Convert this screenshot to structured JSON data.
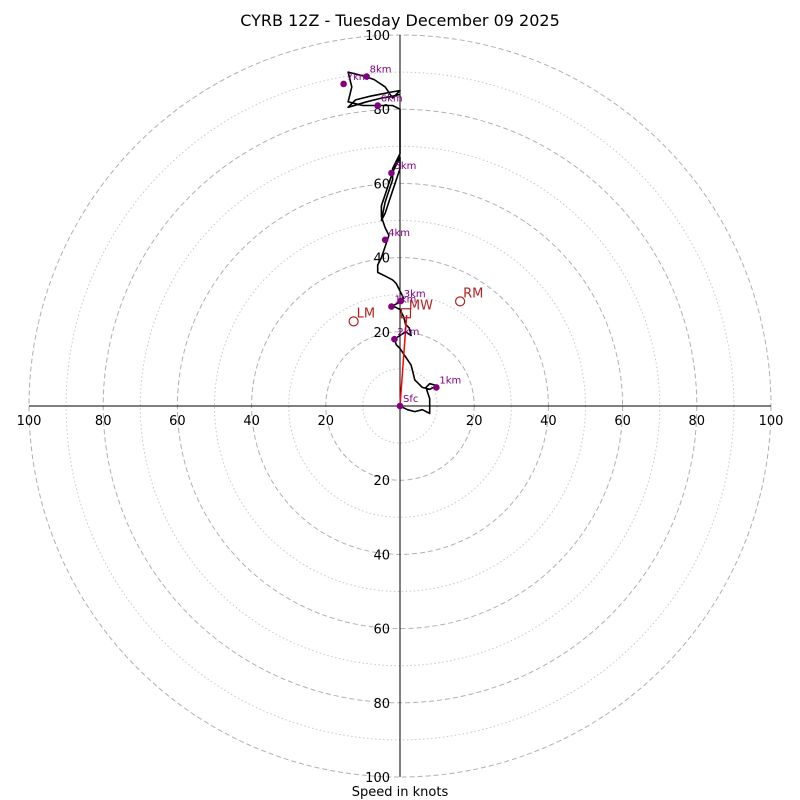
{
  "chart_data": {
    "type": "hodograph",
    "title": "CYRB 12Z - Tuesday December 09 2025",
    "xlabel": "Speed in knots",
    "max_speed": 100,
    "major_rings": [
      20,
      40,
      60,
      80,
      100
    ],
    "minor_rings": [
      10,
      30,
      50,
      70,
      90
    ],
    "tick_labels": [
      "20",
      "40",
      "60",
      "80",
      "100"
    ],
    "profile": [
      [
        0,
        0
      ],
      [
        2,
        -1
      ],
      [
        4,
        -1.5
      ],
      [
        6,
        -1
      ],
      [
        8,
        -2
      ],
      [
        8,
        0
      ],
      [
        8,
        2
      ],
      [
        7.5,
        3.5
      ],
      [
        7,
        5
      ],
      [
        8,
        6
      ],
      [
        10,
        5.5
      ],
      [
        8,
        4.5
      ],
      [
        6,
        5
      ],
      [
        5,
        6
      ],
      [
        4,
        7
      ],
      [
        3.5,
        9
      ],
      [
        3,
        11
      ],
      [
        2,
        12.5
      ],
      [
        1,
        14
      ],
      [
        0,
        15.5
      ],
      [
        -1,
        16.5
      ],
      [
        -1.5,
        18
      ],
      [
        0,
        19
      ],
      [
        1.5,
        20
      ],
      [
        3,
        19
      ],
      [
        2.5,
        21
      ],
      [
        1.5,
        22
      ],
      [
        1,
        24
      ],
      [
        0,
        26
      ],
      [
        -2,
        27
      ],
      [
        0,
        28
      ],
      [
        1,
        29
      ],
      [
        0,
        31
      ],
      [
        -1,
        33
      ],
      [
        -2,
        34
      ],
      [
        -4,
        35
      ],
      [
        -6,
        36
      ],
      [
        -6,
        38
      ],
      [
        -5,
        40
      ],
      [
        -4,
        43
      ],
      [
        -3,
        46
      ],
      [
        -4,
        48
      ],
      [
        -5,
        51
      ],
      [
        -5,
        54
      ],
      [
        -4,
        57
      ],
      [
        -3,
        60
      ],
      [
        -2,
        63
      ],
      [
        -1,
        65
      ],
      [
        0,
        67
      ],
      [
        0,
        64
      ],
      [
        -1,
        61
      ],
      [
        -2,
        58
      ],
      [
        -3,
        55
      ],
      [
        -4,
        52
      ],
      [
        -5,
        50
      ],
      [
        -4,
        55
      ],
      [
        -3,
        58
      ],
      [
        -2,
        61
      ],
      [
        -2,
        64
      ],
      [
        -1,
        66
      ],
      [
        0,
        68
      ],
      [
        0,
        71
      ],
      [
        0,
        74
      ],
      [
        0,
        77
      ],
      [
        0,
        80
      ],
      [
        -2,
        81
      ],
      [
        -6,
        81
      ],
      [
        -10,
        81
      ],
      [
        -14,
        82
      ],
      [
        -13,
        86
      ],
      [
        -14,
        90
      ],
      [
        -10,
        89
      ],
      [
        -7,
        88
      ],
      [
        -4,
        86
      ],
      [
        -2,
        83
      ],
      [
        0,
        85
      ],
      [
        -3,
        84.5
      ],
      [
        -8,
        83.5
      ],
      [
        -12,
        82.5
      ],
      [
        -14,
        80.5
      ],
      [
        -9,
        82
      ],
      [
        -5,
        83
      ],
      [
        -2,
        83.5
      ],
      [
        0,
        84
      ]
    ],
    "height_markers": [
      {
        "label": "Sfc",
        "u": 0,
        "v": 0
      },
      {
        "label": "1km",
        "u": 9.8,
        "v": 5
      },
      {
        "label": "2km",
        "u": -1.5,
        "v": 18
      },
      {
        "label": "3km",
        "u": 0.2,
        "v": 28.3
      },
      {
        "label": "1km",
        "u": -2.3,
        "v": 26.8
      },
      {
        "label": "4km",
        "u": -4,
        "v": 44.8
      },
      {
        "label": "5km",
        "u": -2.3,
        "v": 62.8
      },
      {
        "label": "6km",
        "u": -6,
        "v": 81
      },
      {
        "label": "7km",
        "u": -15.2,
        "v": 86.8
      },
      {
        "label": "8km",
        "u": -9,
        "v": 88.8
      }
    ],
    "storm_motion": [
      {
        "label": "RM",
        "u": 16.2,
        "v": 28.2
      },
      {
        "label": "LM",
        "u": -12.5,
        "v": 22.8
      },
      {
        "label": "MW",
        "u": 1.6,
        "v": 25
      }
    ],
    "shear_vector": {
      "from": [
        0,
        0
      ],
      "to": [
        1.8,
        24.5
      ]
    }
  },
  "colors": {
    "profile": "#000000",
    "markers": "#800080",
    "storm_motion": "#b22222",
    "shear": "#ff0000",
    "grid": "#b0b0b0"
  }
}
